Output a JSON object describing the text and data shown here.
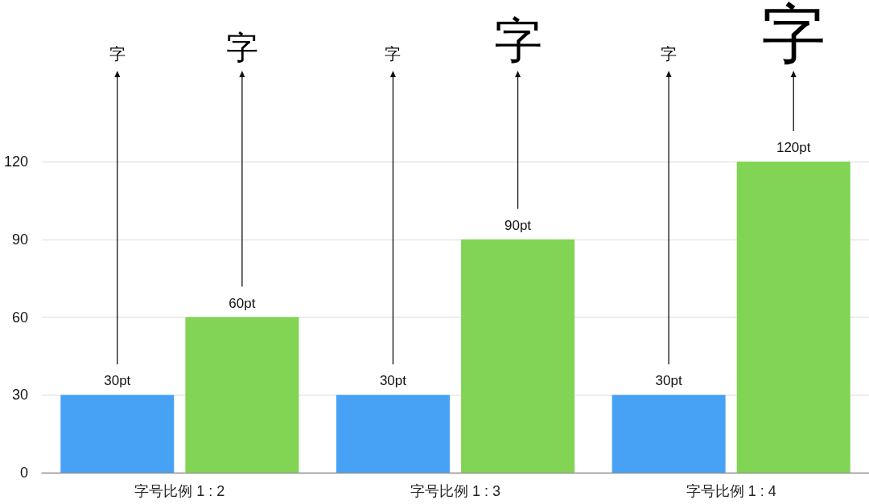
{
  "chart_data": {
    "type": "bar",
    "categories": [
      "字号比例 1 : 2",
      "字号比例 1 : 3",
      "字号比例 1 : 4"
    ],
    "series": [
      {
        "color": "#47a2f6",
        "values": [
          30,
          30,
          30
        ],
        "value_labels": [
          "30pt",
          "30pt",
          "30pt"
        ]
      },
      {
        "color": "#82d455",
        "values": [
          60,
          90,
          120
        ],
        "value_labels": [
          "60pt",
          "90pt",
          "120pt"
        ]
      }
    ],
    "ylim": [
      0,
      120
    ],
    "yticks": [
      0,
      30,
      60,
      90,
      120
    ],
    "grid": "y",
    "annotations": [
      "字",
      "字",
      "字",
      "字",
      "字",
      "字"
    ]
  }
}
